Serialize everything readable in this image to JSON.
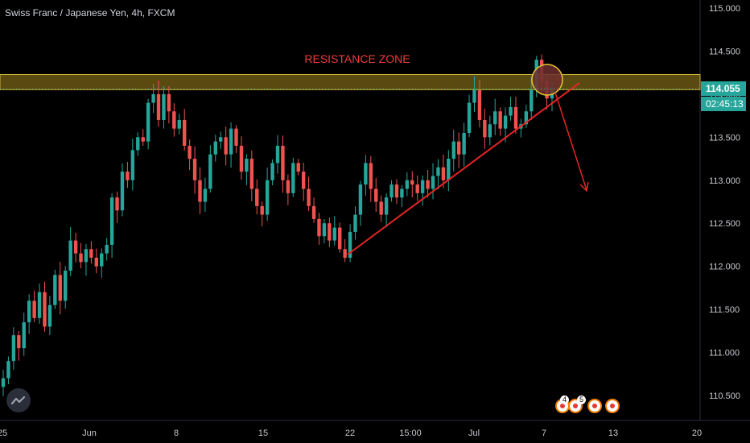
{
  "symbol": {
    "title": "Swiss Franc / Japanese Yen, 4h, FXCM"
  },
  "colors": {
    "background": "#000000",
    "up": "#26a69a",
    "down": "#ef5350",
    "zone_fill": "#5a4a10",
    "zone_border": "#c9b33c",
    "zone_label": "#ef3b3b",
    "trendline": "#e52525",
    "arrow": "#e52525",
    "circle_fill": "#6d2e2e",
    "circle_border": "#e6c230",
    "price_badge": "#26a69a"
  },
  "chart_data": {
    "type": "candlestick",
    "symbol": "Swiss Franc / Japanese Yen",
    "interval": "4h",
    "source": "FXCM",
    "y_axis": {
      "ticks": [
        "115.000",
        "114.500",
        "114.000",
        "113.500",
        "113.000",
        "112.500",
        "112.000",
        "111.500",
        "111.000",
        "110.500"
      ],
      "ylim": [
        110.3,
        115.05
      ]
    },
    "x_axis": {
      "ticks": [
        "25",
        "Jun",
        "8",
        "15",
        "22",
        "15:00",
        "Jul",
        "7",
        "13",
        "20"
      ]
    },
    "current_price": "114.055",
    "countdown": "02:45:13",
    "annotations": {
      "zone_label": "RESISTANCE ZONE",
      "resistance_zone": [
        114.08,
        114.2
      ],
      "trendline": {
        "from": [
          112.07
        ],
        "to": [
          114.22
        ]
      }
    },
    "path_closes": [
      110.7,
      110.9,
      111.2,
      111.05,
      111.35,
      111.6,
      111.4,
      111.7,
      111.3,
      111.55,
      111.9,
      111.6,
      111.95,
      112.3,
      112.15,
      112.05,
      112.2,
      112.1,
      112.0,
      112.15,
      112.25,
      112.8,
      112.65,
      113.1,
      113.0,
      113.35,
      113.5,
      113.45,
      113.9,
      114.0,
      113.7,
      114.0,
      113.8,
      113.6,
      113.7,
      113.4,
      113.25,
      113.0,
      112.75,
      112.9,
      113.3,
      113.45,
      113.5,
      113.3,
      113.6,
      113.4,
      113.1,
      113.25,
      112.9,
      112.7,
      112.6,
      113.0,
      113.2,
      113.4,
      113.0,
      112.85,
      113.2,
      113.1,
      112.9,
      112.7,
      112.55,
      112.35,
      112.5,
      112.3,
      112.45,
      112.2,
      112.1,
      112.4,
      112.6,
      112.95,
      113.2,
      112.9,
      112.75,
      112.6,
      112.8,
      112.95,
      112.8,
      112.9,
      113.0,
      112.95,
      112.85,
      113.0,
      112.9,
      113.05,
      113.15,
      113.0,
      113.25,
      113.45,
      113.3,
      113.55,
      113.9,
      114.05,
      113.7,
      113.5,
      113.65,
      113.8,
      113.6,
      113.75,
      113.85,
      113.6,
      113.65,
      113.8,
      114.05,
      114.4,
      114.15,
      113.95,
      114.05
    ]
  }
}
